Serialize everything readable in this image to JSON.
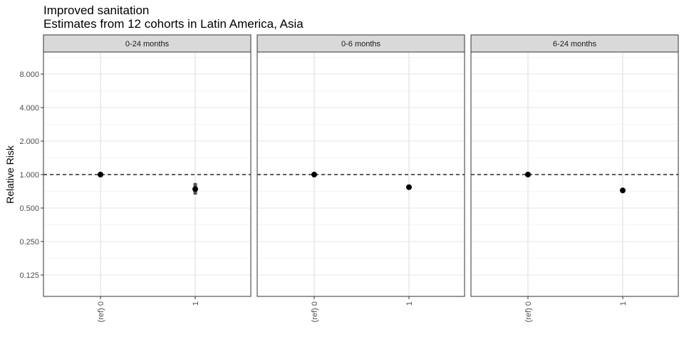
{
  "title": "Improved sanitation",
  "subtitle": "Estimates from 12 cohorts in Latin America, Asia",
  "chart_data": {
    "type": "scatter",
    "ylabel": "Relative Risk",
    "xlabel": "",
    "y_scale": "log",
    "y_ticks": [
      0.125,
      0.25,
      0.5,
      1,
      2,
      4,
      8
    ],
    "y_tick_labels": [
      "0.125",
      "0.250",
      "0.500",
      "1.000",
      "2.000",
      "4.000",
      "8.000"
    ],
    "ylim": [
      0.09,
      10
    ],
    "reference_line": 1,
    "categories": [
      "(ref) 0",
      "1"
    ],
    "grid": true,
    "panels": [
      {
        "name": "0-24 months",
        "points": [
          {
            "x": "(ref) 0",
            "y": 1.0
          },
          {
            "x": "1",
            "y": 0.74,
            "ci": [
              0.66,
              0.84
            ]
          }
        ]
      },
      {
        "name": "0-6 months",
        "points": [
          {
            "x": "(ref) 0",
            "y": 1.0
          },
          {
            "x": "1",
            "y": 0.77
          }
        ]
      },
      {
        "name": "6-24 months",
        "points": [
          {
            "x": "(ref) 0",
            "y": 1.0
          },
          {
            "x": "1",
            "y": 0.72
          }
        ]
      }
    ]
  }
}
